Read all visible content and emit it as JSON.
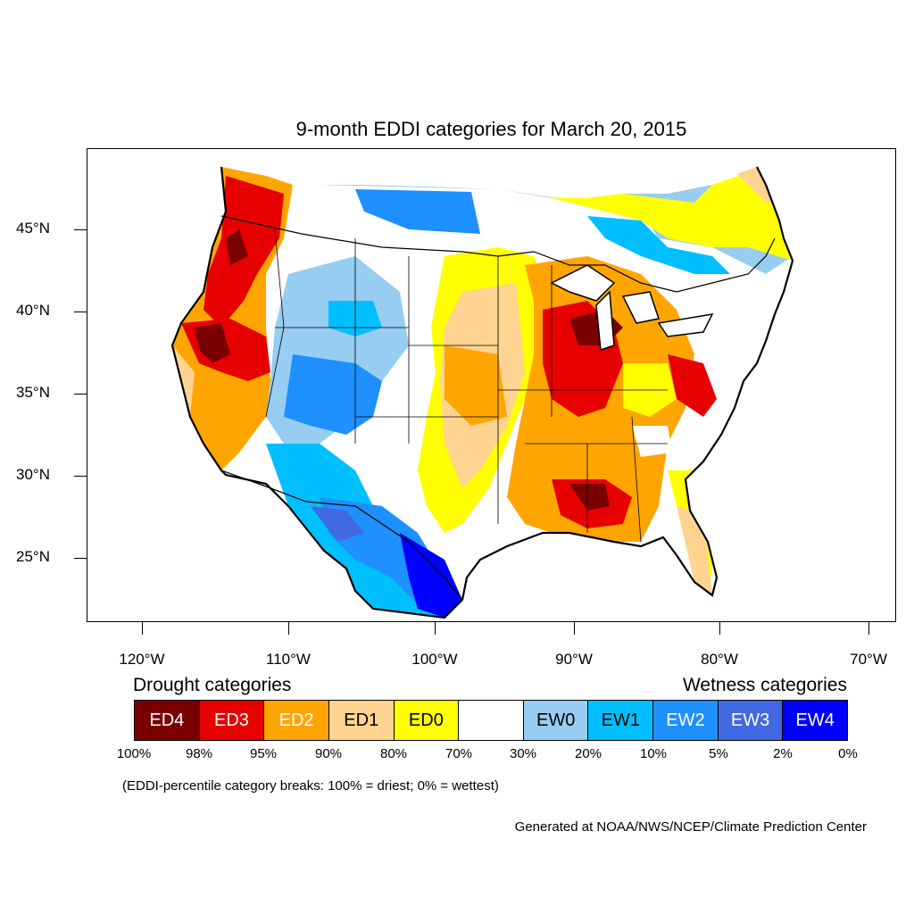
{
  "title": "9-month EDDI categories for March 20, 2015",
  "lat_labels": [
    "45°N",
    "40°N",
    "35°N",
    "30°N",
    "25°N"
  ],
  "lon_labels": [
    "120°W",
    "110°W",
    "100°W",
    "90°W",
    "80°W",
    "70°W"
  ],
  "legend": {
    "drought_title": "Drought categories",
    "wetness_title": "Wetness categories",
    "categories": [
      {
        "label": "ED4",
        "color": "#7a0000",
        "text_color": "#ffffff"
      },
      {
        "label": "ED3",
        "color": "#e60000",
        "text_color": "#ffffff"
      },
      {
        "label": "ED2",
        "color": "#ffa500",
        "text_color": "#ffffff"
      },
      {
        "label": "ED1",
        "color": "#ffd390",
        "text_color": "#000000"
      },
      {
        "label": "ED0",
        "color": "#ffff00",
        "text_color": "#000000"
      },
      {
        "label": "",
        "color": "#ffffff",
        "text_color": "#000000"
      },
      {
        "label": "EW0",
        "color": "#96cdf0",
        "text_color": "#000000"
      },
      {
        "label": "EW1",
        "color": "#00bfff",
        "text_color": "#000000"
      },
      {
        "label": "EW2",
        "color": "#1e90ff",
        "text_color": "#ffffff"
      },
      {
        "label": "EW3",
        "color": "#4169e1",
        "text_color": "#ffffff"
      },
      {
        "label": "EW4",
        "color": "#0000ff",
        "text_color": "#ffffff"
      }
    ],
    "breaks": [
      "100%",
      "98%",
      "95%",
      "90%",
      "80%",
      "70%",
      "30%",
      "20%",
      "10%",
      "5%",
      "2%",
      "0%"
    ],
    "note": "(EDDI-percentile category breaks: 100% = driest; 0% = wettest)"
  },
  "credit": "Generated at NOAA/NWS/NCEP/Climate Prediction Center"
}
